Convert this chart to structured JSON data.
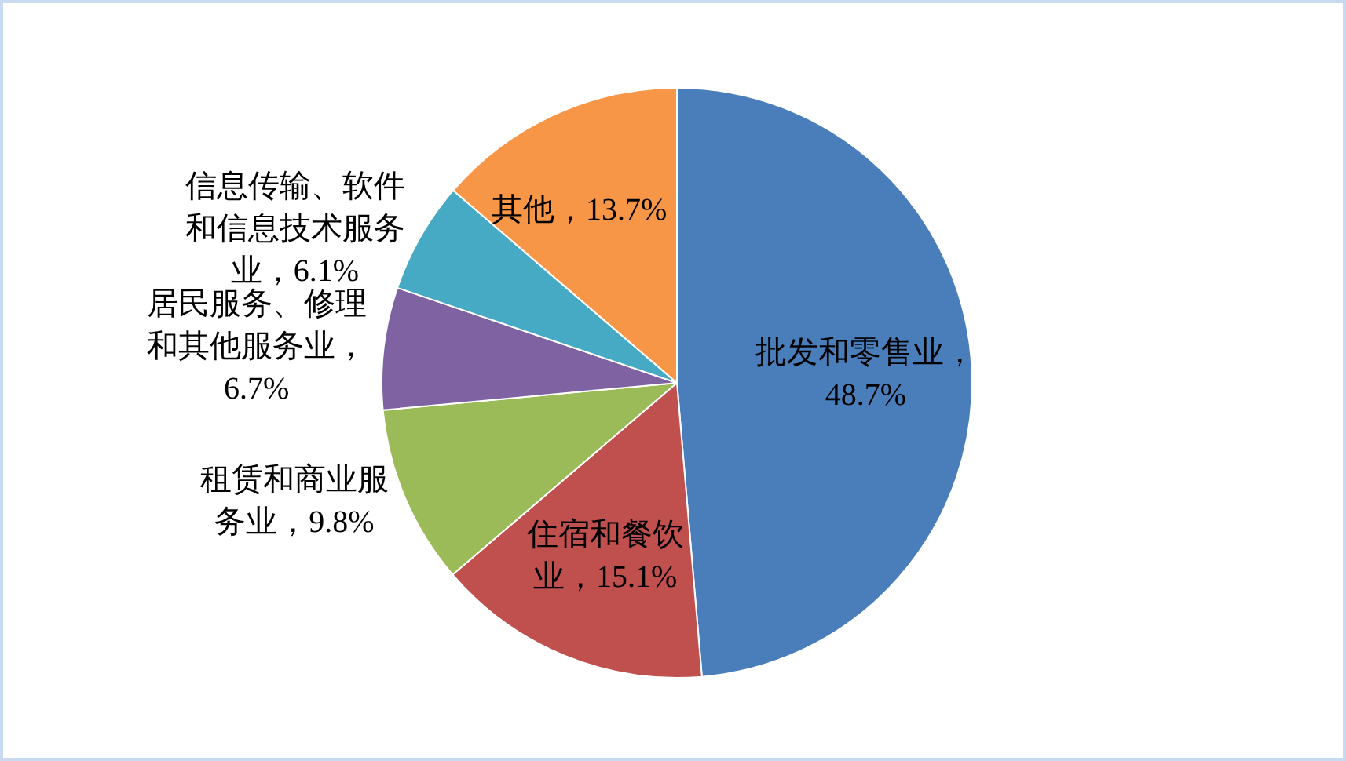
{
  "chart_data": {
    "type": "pie",
    "categories": [
      "批发和零售业",
      "住宿和餐饮业",
      "租赁和商业服务业",
      "居民服务、修理和其他服务业",
      "信息传输、软件和信息技术服务业",
      "其他"
    ],
    "values": [
      48.7,
      15.1,
      9.8,
      6.7,
      6.1,
      13.7
    ],
    "colors": [
      "#4a7ebb",
      "#c0504d",
      "#9bbb59",
      "#7e62a1",
      "#46aac4",
      "#f79646"
    ],
    "value_labels": [
      "，48.7%",
      "，15.1%",
      "，9.8%",
      "，6.7%",
      "，6.1%",
      "，13.7%"
    ]
  }
}
